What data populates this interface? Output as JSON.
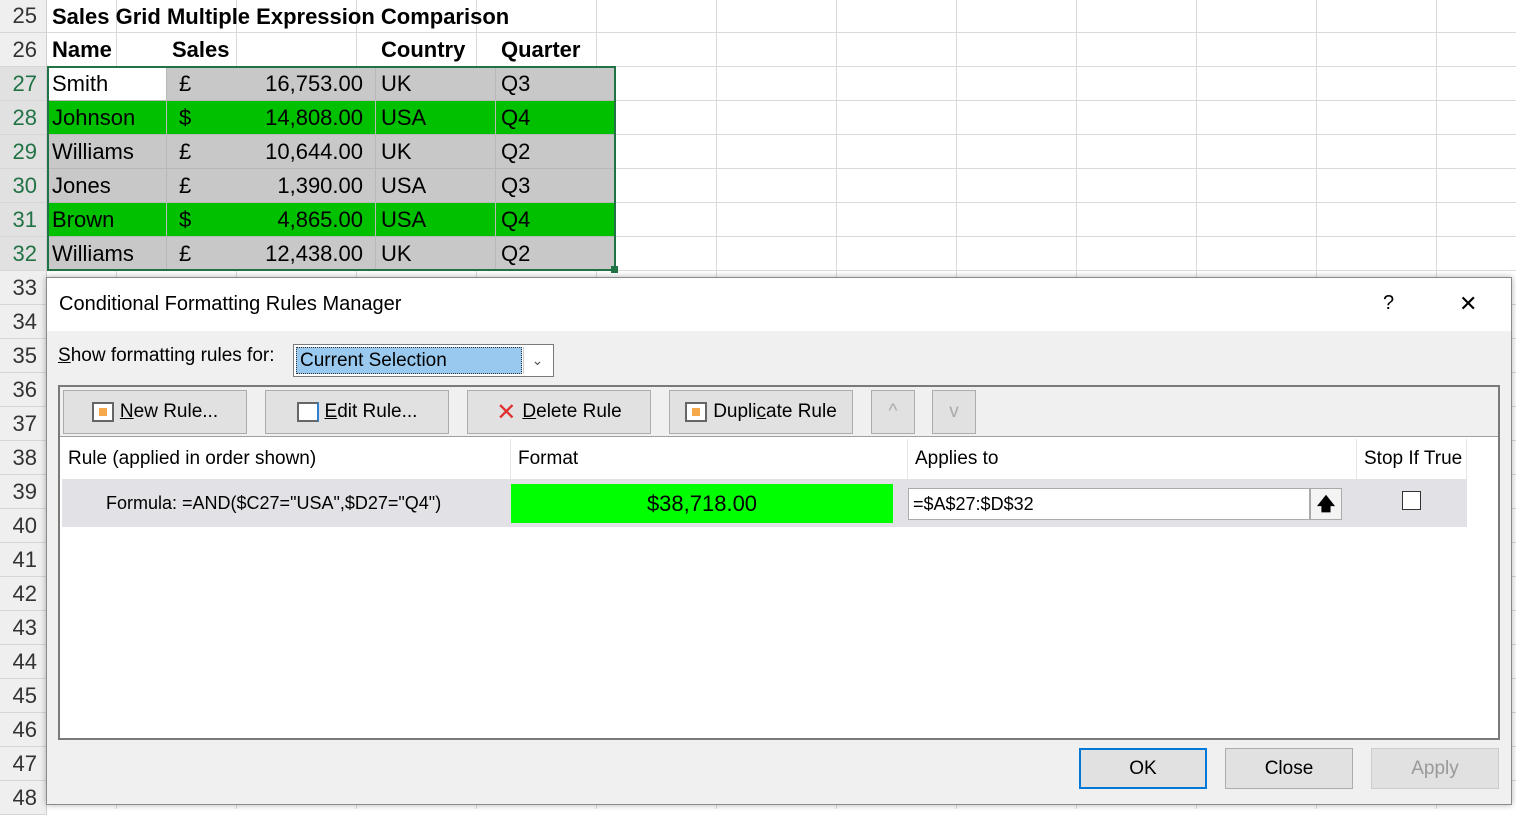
{
  "sheet": {
    "rows": [
      25,
      26,
      27,
      28,
      29,
      30,
      31,
      32,
      33,
      34,
      35,
      36,
      37,
      38,
      39,
      40,
      41,
      42,
      43,
      44,
      45,
      46,
      47,
      48
    ],
    "title": "Sales Grid Multiple Expression Comparison",
    "headers": [
      "Name",
      "Sales",
      "Country",
      "Quarter"
    ],
    "data": [
      {
        "name": "Smith",
        "cur": "£",
        "sales": "16,753.00",
        "country": "UK",
        "quarter": "Q3",
        "hl": false
      },
      {
        "name": " Johnson",
        "cur": "$",
        "sales": "14,808.00",
        "country": " USA",
        "quarter": " Q4",
        "hl": true
      },
      {
        "name": "Williams",
        "cur": "£",
        "sales": "10,644.00",
        "country": "UK",
        "quarter": "Q2",
        "hl": false
      },
      {
        "name": "Jones",
        "cur": "£",
        "sales": "1,390.00",
        "country": "USA",
        "quarter": "Q3",
        "hl": false
      },
      {
        "name": " Brown",
        "cur": "$",
        "sales": "4,865.00",
        "country": " USA",
        "quarter": " Q4",
        "hl": true
      },
      {
        "name": "Williams",
        "cur": "£",
        "sales": "12,438.00",
        "country": "UK",
        "quarter": "Q2",
        "hl": false
      }
    ],
    "colors": {
      "highlight": "#00c000",
      "grey": "#c8c8c8",
      "selection": "#217346"
    }
  },
  "dialog": {
    "title": "Conditional Formatting Rules Manager",
    "help": "?",
    "close": "✕",
    "show_label_u": "S",
    "show_label": "how formatting rules for:",
    "show_value": "Current Selection",
    "toolbar": {
      "new_u": "N",
      "new": "ew Rule...",
      "edit_u": "E",
      "edit": "dit Rule...",
      "delete_u": "D",
      "delete": "elete Rule",
      "dup_a": "Dupli",
      "dup_u": "c",
      "dup_b": "ate Rule",
      "up": "^",
      "down": "v"
    },
    "columns": [
      "Rule (applied in order shown)",
      "Format",
      "Applies to",
      "Stop If True"
    ],
    "rules": [
      {
        "rule": "Formula: =AND($C27=\"USA\",$D27=\"Q4\")",
        "format_preview": "$38,718.00",
        "format_color": "#00ff00",
        "applies_to": "=$A$27:$D$32",
        "stop_if_true": false
      }
    ],
    "buttons": {
      "ok": "OK",
      "close": "Close",
      "apply": "Apply"
    }
  }
}
